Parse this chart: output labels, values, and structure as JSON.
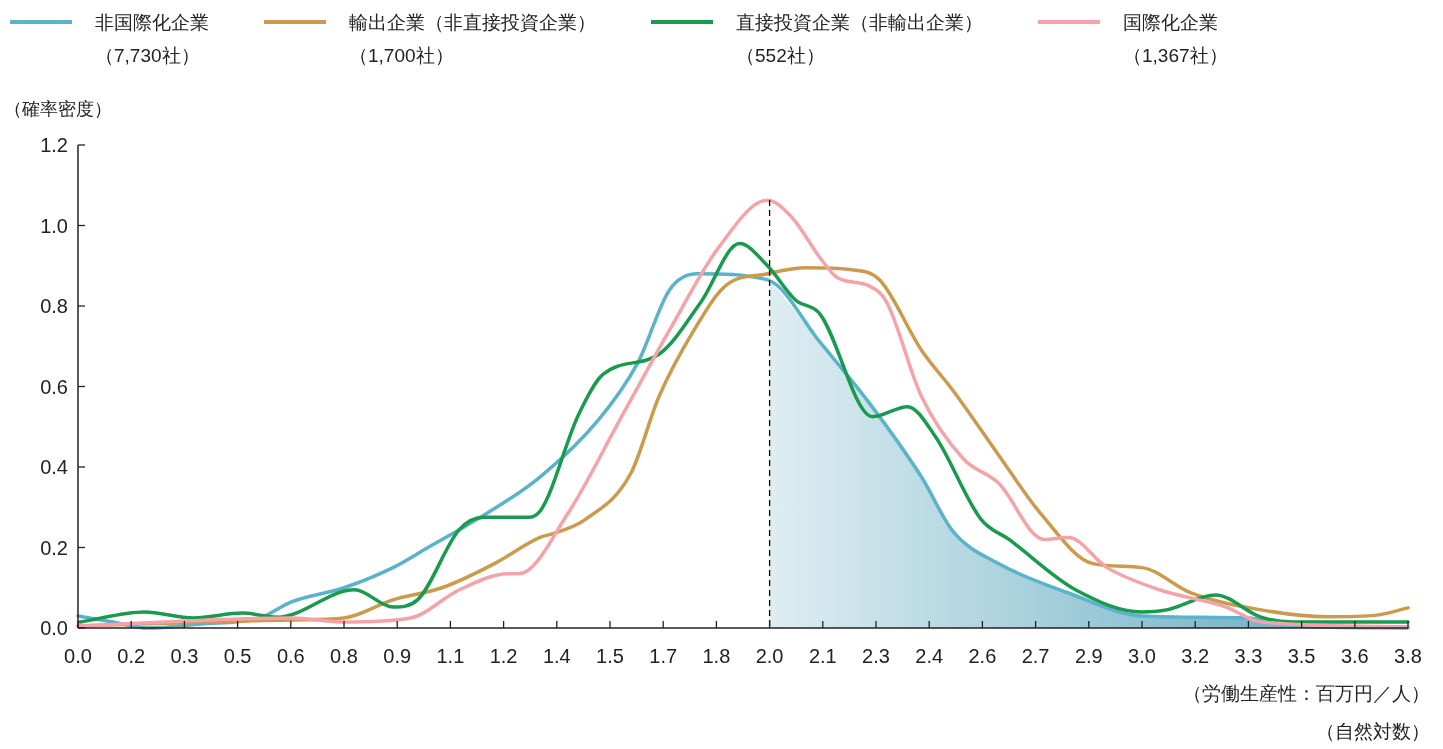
{
  "chart_data": {
    "type": "line",
    "ylabel": "（確率密度）",
    "xlabel": "（労働生産性：百万円／人）（自然対数）",
    "legend": "top",
    "grid": false,
    "line_style": "solid",
    "marker": "none",
    "xlim": [
      0,
      3.8
    ],
    "ylim": [
      0,
      1.2
    ],
    "xticks": [
      {
        "value": 0,
        "label": "0.0"
      },
      {
        "value": 0.152,
        "label": "0.2"
      },
      {
        "value": 0.304,
        "label": "0.3"
      },
      {
        "value": 0.456,
        "label": "0.5"
      },
      {
        "value": 0.608,
        "label": "0.6"
      },
      {
        "value": 0.76,
        "label": "0.8"
      },
      {
        "value": 0.912,
        "label": "0.9"
      },
      {
        "value": 1.064,
        "label": "1.1"
      },
      {
        "value": 1.216,
        "label": "1.2"
      },
      {
        "value": 1.368,
        "label": "1.4"
      },
      {
        "value": 1.52,
        "label": "1.5"
      },
      {
        "value": 1.672,
        "label": "1.7"
      },
      {
        "value": 1.824,
        "label": "1.8"
      },
      {
        "value": 1.976,
        "label": "2.0"
      },
      {
        "value": 2.128,
        "label": "2.1"
      },
      {
        "value": 2.28,
        "label": "2.3"
      },
      {
        "value": 2.432,
        "label": "2.4"
      },
      {
        "value": 2.584,
        "label": "2.6"
      },
      {
        "value": 2.736,
        "label": "2.7"
      },
      {
        "value": 2.888,
        "label": "2.9"
      },
      {
        "value": 3.04,
        "label": "3.0"
      },
      {
        "value": 3.192,
        "label": "3.2"
      },
      {
        "value": 3.344,
        "label": "3.3"
      },
      {
        "value": 3.496,
        "label": "3.5"
      },
      {
        "value": 3.648,
        "label": "3.6"
      },
      {
        "value": 3.8,
        "label": "3.8"
      }
    ],
    "yticks": [
      {
        "value": 0,
        "label": "0.0"
      },
      {
        "value": 0.2,
        "label": "0.2"
      },
      {
        "value": 0.4,
        "label": "0.4"
      },
      {
        "value": 0.6,
        "label": "0.6"
      },
      {
        "value": 0.8,
        "label": "0.8"
      },
      {
        "value": 1,
        "label": "1.0"
      },
      {
        "value": 1.2,
        "label": "1.2"
      }
    ],
    "ref_lines": [
      {
        "axis": "x",
        "value": 1.976,
        "color": "#000000",
        "line_style": "dashed"
      }
    ],
    "series": [
      {
        "type": "area",
        "color": "#5aa6be",
        "x": [
          1.976,
          2.12,
          2.26,
          2.41,
          2.5,
          2.63,
          2.83,
          3.04,
          3.34,
          3.47,
          3.8
        ],
        "values": [
          0.865,
          0.71,
          0.56,
          0.375,
          0.24,
          0.16,
          0.087,
          0.03,
          0.025,
          0.005,
          0.0
        ]
      },
      {
        "name": "非国際化企業（7,730社）",
        "color": "#5bb3c9",
        "x": [
          0,
          0.1,
          0.2,
          0.35,
          0.52,
          0.61,
          0.76,
          0.9,
          1.0,
          1.14,
          1.32,
          1.49,
          1.6,
          1.69,
          1.77,
          1.97,
          2.12,
          2.26,
          2.41,
          2.5,
          2.63,
          2.83,
          3.04,
          3.34,
          3.47,
          3.8
        ],
        "values": [
          0.03,
          0.015,
          0.0,
          0.01,
          0.025,
          0.065,
          0.1,
          0.15,
          0.2,
          0.27,
          0.375,
          0.52,
          0.66,
          0.84,
          0.88,
          0.865,
          0.71,
          0.56,
          0.375,
          0.24,
          0.16,
          0.087,
          0.03,
          0.025,
          0.005,
          0.0
        ]
      },
      {
        "name": "輸出企業（非直接投資企業）（1,700社）",
        "color": "#cc9a4c",
        "x": [
          0,
          0.61,
          0.76,
          0.9,
          1.04,
          1.19,
          1.32,
          1.36,
          1.45,
          1.58,
          1.66,
          1.76,
          1.85,
          1.97,
          2.08,
          2.21,
          2.29,
          2.41,
          2.5,
          2.63,
          2.75,
          2.9,
          3.04,
          3.18,
          3.38,
          3.57,
          3.71,
          3.8
        ],
        "values": [
          0.005,
          0.02,
          0.025,
          0.07,
          0.1,
          0.16,
          0.225,
          0.235,
          0.27,
          0.385,
          0.575,
          0.74,
          0.85,
          0.88,
          0.895,
          0.89,
          0.865,
          0.69,
          0.59,
          0.43,
          0.285,
          0.16,
          0.15,
          0.087,
          0.045,
          0.028,
          0.032,
          0.05
        ]
      },
      {
        "name": "直接投資企業（非輸出企業）（552社）",
        "color": "#1a9a4f",
        "x": [
          0.006,
          0.19,
          0.33,
          0.47,
          0.57,
          0.79,
          0.9,
          0.97,
          1.09,
          1.16,
          1.28,
          1.32,
          1.43,
          1.5,
          1.66,
          1.78,
          1.89,
          1.97,
          2.05,
          2.12,
          2.27,
          2.37,
          2.45,
          2.58,
          2.66,
          2.85,
          3.04,
          3.11,
          3.25,
          3.38,
          3.47,
          3.8
        ],
        "values": [
          0.015,
          0.04,
          0.025,
          0.037,
          0.027,
          0.095,
          0.052,
          0.07,
          0.245,
          0.275,
          0.275,
          0.29,
          0.53,
          0.63,
          0.68,
          0.81,
          0.955,
          0.9,
          0.815,
          0.78,
          0.525,
          0.55,
          0.475,
          0.27,
          0.22,
          0.095,
          0.04,
          0.045,
          0.082,
          0.027,
          0.015,
          0.015
        ]
      },
      {
        "name": "国際化企業（1,367社）",
        "color": "#f4a3a8",
        "x": [
          0,
          0.61,
          0.76,
          0.95,
          1.09,
          1.23,
          1.26,
          1.4,
          1.55,
          1.69,
          1.83,
          1.97,
          2.04,
          2.12,
          2.17,
          2.26,
          2.31,
          2.41,
          2.53,
          2.63,
          2.76,
          2.83,
          2.94,
          3.09,
          3.28,
          3.38,
          3.8
        ],
        "values": [
          0.005,
          0.025,
          0.015,
          0.025,
          0.095,
          0.135,
          0.135,
          0.285,
          0.52,
          0.74,
          0.945,
          1.063,
          1.02,
          0.92,
          0.87,
          0.85,
          0.81,
          0.575,
          0.42,
          0.36,
          0.22,
          0.225,
          0.15,
          0.095,
          0.052,
          0.015,
          0.003
        ]
      }
    ]
  }
}
